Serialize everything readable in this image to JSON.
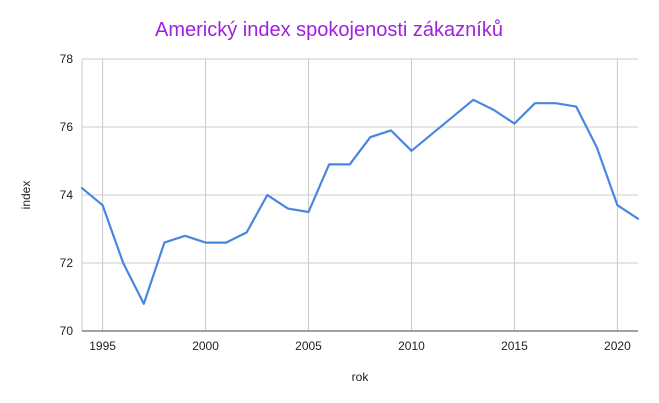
{
  "chart_data": {
    "type": "line",
    "title": "Americký index spokojenosti zákazníků",
    "xlabel": "rok",
    "ylabel": "index",
    "xlim": [
      1994,
      2021
    ],
    "ylim": [
      70,
      78
    ],
    "x_ticks": [
      "1995",
      "2000",
      "2005",
      "2010",
      "2015",
      "2020"
    ],
    "y_ticks": [
      "70",
      "72",
      "74",
      "76",
      "78"
    ],
    "grid": true,
    "line_color": "#4a86e0",
    "title_color": "#9f21e0",
    "series": [
      {
        "x": [
          1994,
          1995,
          1996,
          1997,
          1998,
          1999,
          2000,
          2001,
          2002,
          2003,
          2004,
          2005,
          2006,
          2007,
          2008,
          2009,
          2010,
          2011,
          2012,
          2013,
          2014,
          2015,
          2016,
          2017,
          2018,
          2019,
          2020,
          2021
        ],
        "values": [
          74.2,
          73.7,
          72.0,
          70.8,
          72.6,
          72.8,
          72.6,
          72.6,
          72.9,
          74.0,
          73.6,
          73.5,
          74.9,
          74.9,
          75.7,
          75.9,
          75.3,
          75.8,
          76.3,
          76.8,
          76.5,
          76.1,
          76.7,
          76.7,
          76.6,
          75.4,
          73.7,
          73.3
        ]
      }
    ]
  }
}
